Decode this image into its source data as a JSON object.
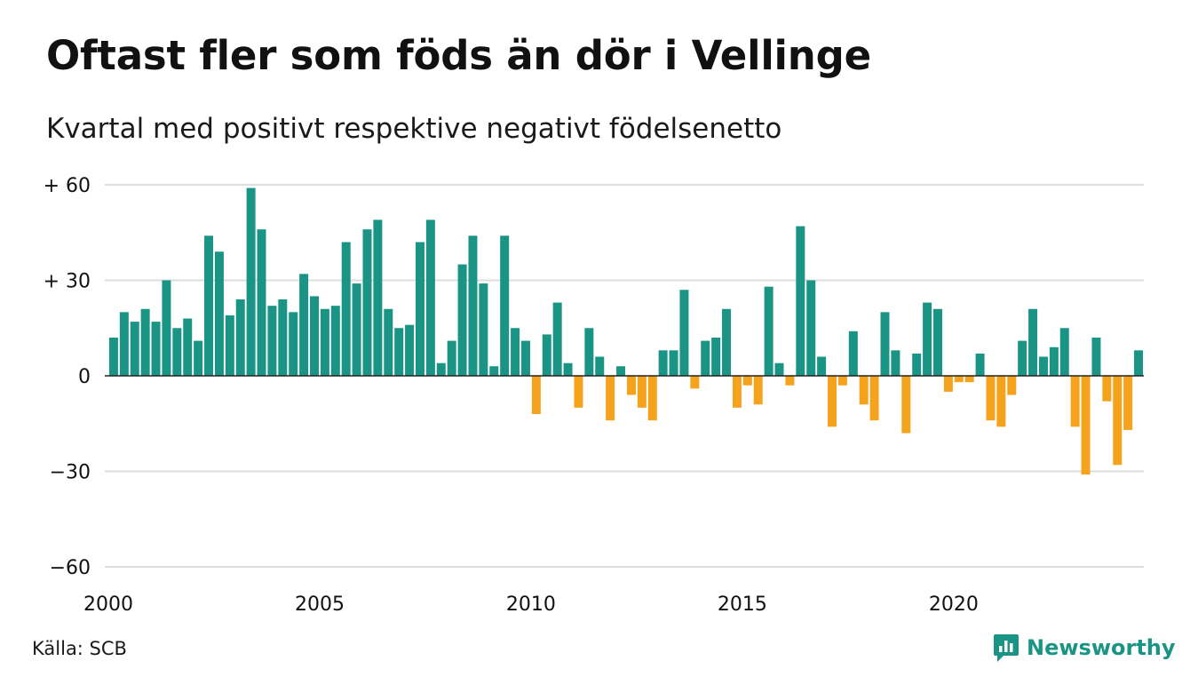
{
  "header": {
    "title": "Oftast fler som föds än dör i Vellinge",
    "subtitle": "Kvartal med positivt respektive negativt födelsenetto"
  },
  "footer": {
    "source": "Källa: SCB",
    "brand": "Newsworthy",
    "brand_icon": "newsworthy-logo-icon"
  },
  "colors": {
    "positive": "#1a9485",
    "negative": "#f5a21c",
    "grid": "#dddddd",
    "zero_line": "#222222",
    "brand": "#1a9485"
  },
  "chart_data": {
    "type": "bar",
    "x_start": 2000,
    "x_period": "quarter",
    "ylim": [
      -60,
      60
    ],
    "y_ticks": [
      60,
      30,
      0,
      -30,
      -60
    ],
    "y_tick_labels": [
      "+ 60",
      "+ 30",
      "0",
      "−30",
      "−60"
    ],
    "x_ticks": [
      2000,
      2005,
      2010,
      2015,
      2020
    ],
    "x_tick_labels": [
      "2000",
      "2005",
      "2010",
      "2015",
      "2020"
    ],
    "grid": true,
    "values": [
      12,
      20,
      17,
      21,
      17,
      30,
      15,
      18,
      11,
      44,
      39,
      19,
      24,
      59,
      46,
      22,
      24,
      20,
      32,
      25,
      21,
      22,
      42,
      29,
      46,
      49,
      21,
      15,
      16,
      42,
      49,
      4,
      11,
      35,
      44,
      29,
      3,
      44,
      15,
      11,
      -12,
      13,
      23,
      4,
      -10,
      15,
      6,
      -14,
      3,
      -6,
      -10,
      -14,
      8,
      8,
      27,
      -4,
      11,
      12,
      21,
      -10,
      -3,
      -9,
      28,
      4,
      -3,
      47,
      30,
      6,
      -16,
      -3,
      14,
      -9,
      -14,
      20,
      8,
      -18,
      7,
      23,
      21,
      -5,
      -2,
      -2,
      7,
      -14,
      -16,
      -6,
      11,
      21,
      6,
      9,
      15,
      -16,
      -31,
      12,
      -8,
      -28,
      -17,
      8
    ]
  }
}
